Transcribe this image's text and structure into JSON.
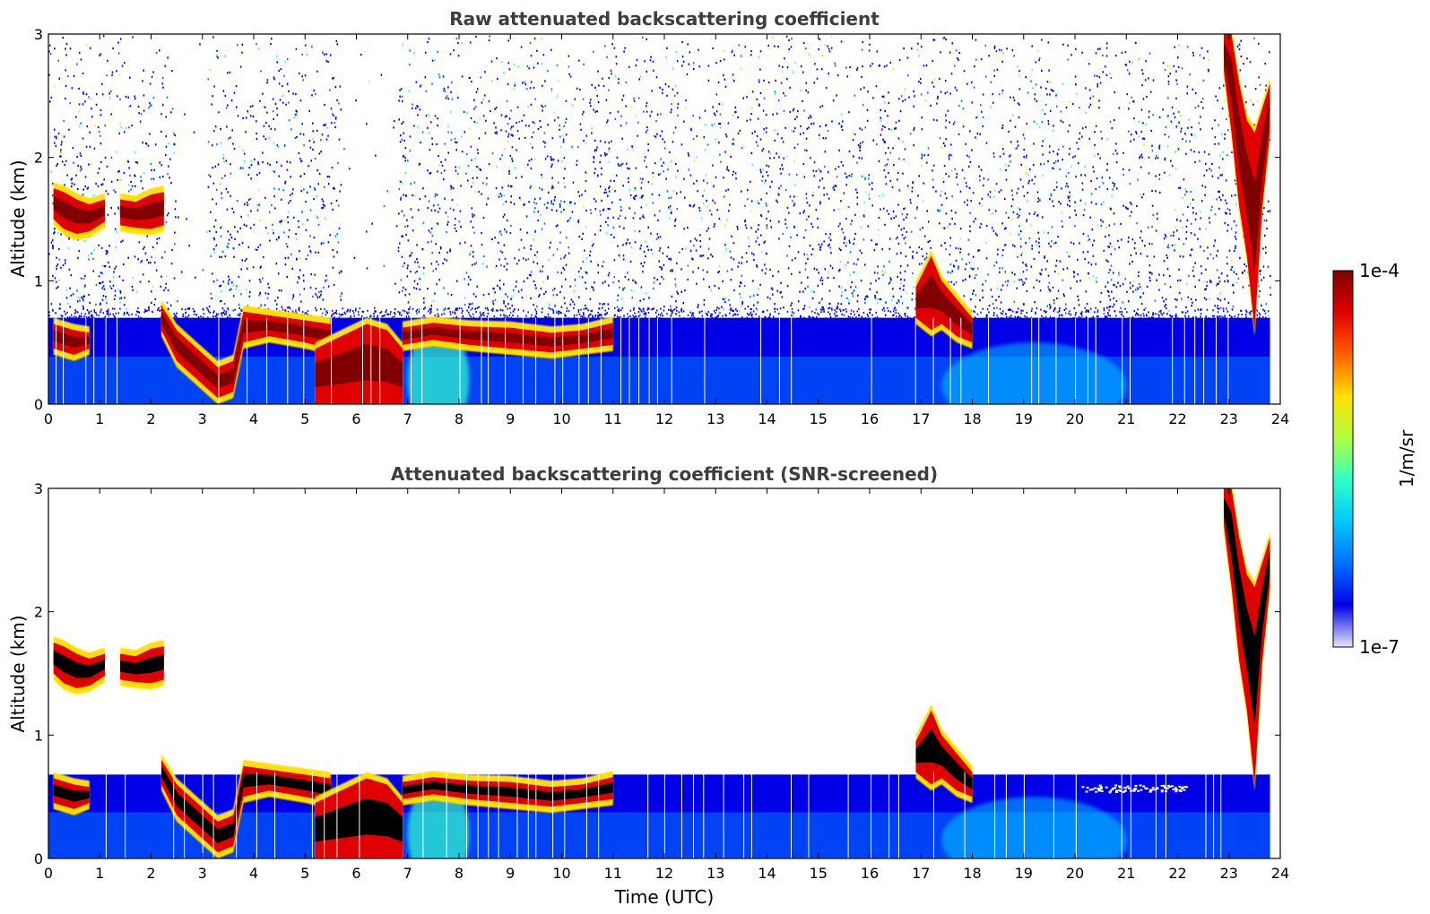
{
  "chart_data": [
    {
      "type": "heatmap",
      "title": "Raw attenuated backscattering coefficient",
      "xlabel": "",
      "ylabel": "Altitude (km)",
      "xlim": [
        0,
        24
      ],
      "ylim": [
        0,
        3
      ],
      "xticks": [
        "0",
        "1",
        "2",
        "3",
        "4",
        "5",
        "6",
        "7",
        "8",
        "9",
        "10",
        "11",
        "12",
        "13",
        "14",
        "15",
        "16",
        "17",
        "18",
        "19",
        "20",
        "21",
        "22",
        "23",
        "24"
      ],
      "yticks": [
        "0",
        "1",
        "2",
        "3"
      ],
      "features": [
        {
          "name": "boundary-layer",
          "t_start": 0.0,
          "t_end": 23.8,
          "alt_top": 0.7,
          "level": "low"
        },
        {
          "name": "noise-background",
          "t_start": 0.0,
          "t_end": 23.8,
          "alt_bottom": 0.7,
          "alt_top": 3.0,
          "level": "sparse"
        },
        {
          "name": "cloud-layer-1",
          "t_start": 0.1,
          "t_end": 1.1,
          "alt_bottom": 1.35,
          "alt_top": 1.8,
          "level": "high"
        },
        {
          "name": "cloud-layer-2",
          "t_start": 1.4,
          "t_end": 2.25,
          "alt_bottom": 1.4,
          "alt_top": 1.75,
          "level": "high"
        },
        {
          "name": "bl-top-cloud",
          "t_start": 2.2,
          "t_end": 11.0,
          "alt_bottom": 0.0,
          "alt_top": 0.85,
          "level": "high"
        },
        {
          "name": "fog-event",
          "t_start": 5.2,
          "t_end": 6.9,
          "alt_bottom": 0.0,
          "alt_top": 0.65,
          "level": "high"
        },
        {
          "name": "convective-plume",
          "t_start": 16.9,
          "t_end": 18.0,
          "alt_bottom": 0.5,
          "alt_top": 1.25,
          "level": "high"
        },
        {
          "name": "precipitation-streak",
          "t_start": 22.9,
          "t_end": 23.8,
          "alt_bottom": 0.5,
          "alt_top": 3.0,
          "level": "high"
        }
      ]
    },
    {
      "type": "heatmap",
      "title": "Attenuated backscattering coefficient (SNR-screened)",
      "xlabel": "Time (UTC)",
      "ylabel": "Altitude (km)",
      "xlim": [
        0,
        24
      ],
      "ylim": [
        0,
        3
      ],
      "xticks": [
        "0",
        "1",
        "2",
        "3",
        "4",
        "5",
        "6",
        "7",
        "8",
        "9",
        "10",
        "11",
        "12",
        "13",
        "14",
        "15",
        "16",
        "17",
        "18",
        "19",
        "20",
        "21",
        "22",
        "23",
        "24"
      ],
      "yticks": [
        "0",
        "1",
        "2",
        "3"
      ],
      "features": [
        {
          "name": "boundary-layer",
          "t_start": 0.0,
          "t_end": 23.8,
          "alt_top": 0.68,
          "level": "low"
        },
        {
          "name": "cloud-layer-1",
          "t_start": 0.1,
          "t_end": 1.1,
          "alt_bottom": 1.35,
          "alt_top": 1.8,
          "level": "saturated"
        },
        {
          "name": "cloud-layer-2",
          "t_start": 1.4,
          "t_end": 2.25,
          "alt_bottom": 1.4,
          "alt_top": 1.75,
          "level": "saturated"
        },
        {
          "name": "bl-top-cloud",
          "t_start": 2.2,
          "t_end": 11.0,
          "alt_bottom": 0.0,
          "alt_top": 0.85,
          "level": "saturated"
        },
        {
          "name": "fog-event",
          "t_start": 5.2,
          "t_end": 6.9,
          "alt_bottom": 0.0,
          "alt_top": 0.65,
          "level": "high"
        },
        {
          "name": "convective-plume",
          "t_start": 16.9,
          "t_end": 18.0,
          "alt_bottom": 0.5,
          "alt_top": 1.25,
          "level": "saturated"
        },
        {
          "name": "precipitation-streak",
          "t_start": 22.9,
          "t_end": 23.8,
          "alt_bottom": 0.5,
          "alt_top": 3.0,
          "level": "high"
        }
      ]
    }
  ],
  "colorbar": {
    "label": "1/m/sr",
    "max_label": "1e-4",
    "min_label": "1e-7",
    "scale": "log",
    "colors": [
      "#e6e6f7",
      "#0000e6",
      "#0070ff",
      "#00c8ff",
      "#30ffc8",
      "#b0ff40",
      "#ffe000",
      "#ff6000",
      "#e00000",
      "#800000"
    ]
  }
}
